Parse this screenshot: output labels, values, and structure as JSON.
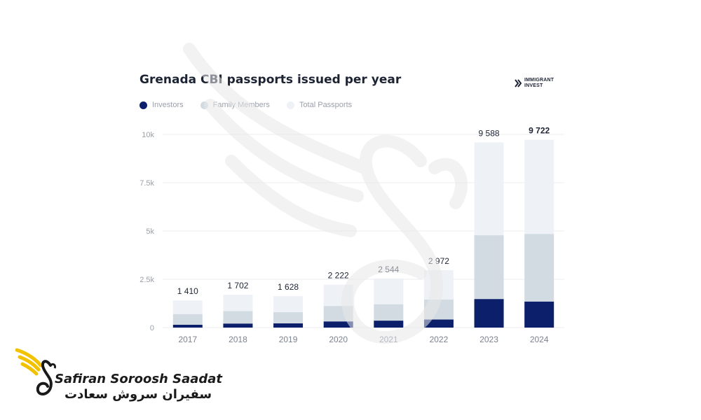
{
  "header": {
    "title": "Grenada CBI passports issued per year",
    "brand_text": "IMMIGRANT\nINVEST"
  },
  "legend": [
    {
      "label": "Investors",
      "color": "#0b1f6b"
    },
    {
      "label": "Family Members",
      "color": "#d2dbe2"
    },
    {
      "label": "Total Passports",
      "color": "#eef2f7"
    }
  ],
  "chart_data": {
    "type": "bar",
    "stacked": true,
    "title": "Grenada CBI passports issued per year",
    "categories": [
      "2017",
      "2018",
      "2019",
      "2020",
      "2021",
      "2022",
      "2023",
      "2024"
    ],
    "series": [
      {
        "name": "Investors",
        "color": "#0b1f6b",
        "values": [
          150,
          210,
          220,
          320,
          360,
          420,
          1480,
          1350
        ]
      },
      {
        "name": "Family Members",
        "color": "#d2dbe2",
        "values": [
          550,
          650,
          580,
          800,
          850,
          1030,
          3300,
          3500
        ]
      },
      {
        "name": "Total Passports",
        "color": "#eef2f7",
        "values": [
          710,
          842,
          828,
          1102,
          1334,
          1522,
          4808,
          4872
        ]
      }
    ],
    "totals": [
      1410,
      1702,
      1628,
      2222,
      2544,
      2972,
      9588,
      9722
    ],
    "total_labels": [
      "1 410",
      "1 702",
      "1 628",
      "2 222",
      "2 544",
      "2 972",
      "9 588",
      "9 722"
    ],
    "y_ticks": [
      0,
      2500,
      5000,
      7500,
      10000
    ],
    "y_tick_labels": [
      "0",
      "2.5k",
      "5k",
      "7.5k",
      "10k"
    ],
    "ylim": [
      0,
      10000
    ],
    "grid": true,
    "legend_position": "top-left"
  },
  "footer": {
    "company_name": "Safiran Soroosh Saadat",
    "company_name_fa": "سفیران سروش سعادت"
  }
}
